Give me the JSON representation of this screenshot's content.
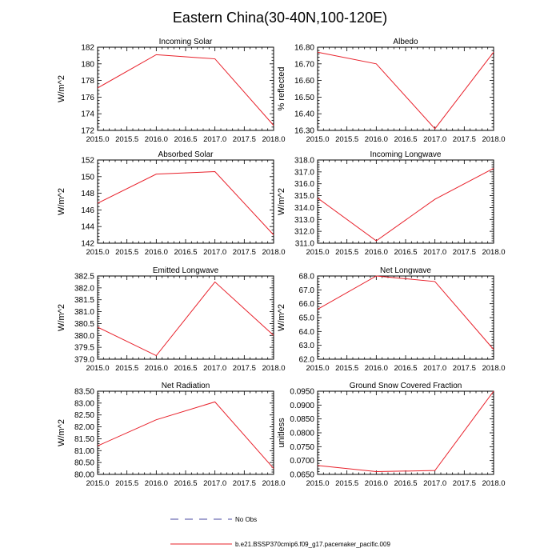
{
  "figure": {
    "title": "Eastern China(30-40N,100-120E)"
  },
  "legend": {
    "entries": [
      {
        "label": "No Obs",
        "style": "dashed",
        "color": "#4a4aa0"
      },
      {
        "label": "b.e21.BSSP370cmip6.f09_g17.pacemaker_pacific.009",
        "style": "solid",
        "color": "#e8202a"
      }
    ]
  },
  "chart_data": [
    {
      "type": "line",
      "title": "Incoming Solar",
      "ylabel": "W/m^2",
      "xlabel": "",
      "x": [
        2015,
        2016,
        2017,
        2018
      ],
      "xlim": [
        2015,
        2018
      ],
      "ylim": [
        172,
        182
      ],
      "xticks": [
        "2015.0",
        "2015.5",
        "2016.0",
        "2016.5",
        "2017.0",
        "2017.5",
        "2018.0"
      ],
      "yticks": [
        "172",
        "174",
        "176",
        "178",
        "180",
        "182"
      ],
      "series": [
        {
          "name": "b.e21.BSSP370cmip6.f09_g17.pacemaker_pacific.009",
          "values": [
            177.1,
            181.1,
            180.6,
            172.6
          ]
        }
      ]
    },
    {
      "type": "line",
      "title": "Albedo",
      "ylabel": "% reflected",
      "xlabel": "",
      "x": [
        2015,
        2016,
        2017,
        2018
      ],
      "xlim": [
        2015,
        2018
      ],
      "ylim": [
        16.3,
        16.8
      ],
      "xticks": [
        "2015.0",
        "2015.5",
        "2016.0",
        "2016.5",
        "2017.0",
        "2017.5",
        "2018.0"
      ],
      "yticks": [
        "16.30",
        "16.40",
        "16.50",
        "16.60",
        "16.70",
        "16.80"
      ],
      "series": [
        {
          "name": "b.e21.BSSP370cmip6.f09_g17.pacemaker_pacific.009",
          "values": [
            16.77,
            16.7,
            16.31,
            16.77
          ]
        }
      ]
    },
    {
      "type": "line",
      "title": "Absorbed Solar",
      "ylabel": "W/m^2",
      "xlabel": "",
      "x": [
        2015,
        2016,
        2017,
        2018
      ],
      "xlim": [
        2015,
        2018
      ],
      "ylim": [
        142,
        152
      ],
      "xticks": [
        "2015.0",
        "2015.5",
        "2016.0",
        "2016.5",
        "2017.0",
        "2017.5",
        "2018.0"
      ],
      "yticks": [
        "142",
        "144",
        "146",
        "148",
        "150",
        "152"
      ],
      "series": [
        {
          "name": "b.e21.BSSP370cmip6.f09_g17.pacemaker_pacific.009",
          "values": [
            146.8,
            150.3,
            150.6,
            143.0
          ]
        }
      ]
    },
    {
      "type": "line",
      "title": "Incoming Longwave",
      "ylabel": "W/m^2",
      "xlabel": "",
      "x": [
        2015,
        2016,
        2017,
        2018
      ],
      "xlim": [
        2015,
        2018
      ],
      "ylim": [
        311,
        318
      ],
      "xticks": [
        "2015.0",
        "2015.5",
        "2016.0",
        "2016.5",
        "2017.0",
        "2017.5",
        "2018.0"
      ],
      "yticks": [
        "311.0",
        "312.0",
        "313.0",
        "314.0",
        "315.0",
        "316.0",
        "317.0",
        "318.0"
      ],
      "series": [
        {
          "name": "b.e21.BSSP370cmip6.f09_g17.pacemaker_pacific.009",
          "values": [
            314.8,
            311.2,
            314.7,
            317.3
          ]
        }
      ]
    },
    {
      "type": "line",
      "title": "Emitted Longwave",
      "ylabel": "W/m^2",
      "xlabel": "",
      "x": [
        2015,
        2016,
        2017,
        2018
      ],
      "xlim": [
        2015,
        2018
      ],
      "ylim": [
        379.0,
        382.5
      ],
      "xticks": [
        "2015.0",
        "2015.5",
        "2016.0",
        "2016.5",
        "2017.0",
        "2017.5",
        "2018.0"
      ],
      "yticks": [
        "379.0",
        "379.5",
        "380.0",
        "380.5",
        "381.0",
        "381.5",
        "382.0",
        "382.5"
      ],
      "series": [
        {
          "name": "b.e21.BSSP370cmip6.f09_g17.pacemaker_pacific.009",
          "values": [
            380.35,
            379.15,
            382.25,
            380.0
          ]
        }
      ]
    },
    {
      "type": "line",
      "title": "Net Longwave",
      "ylabel": "W/m^2",
      "xlabel": "",
      "x": [
        2015,
        2016,
        2017,
        2018
      ],
      "xlim": [
        2015,
        2018
      ],
      "ylim": [
        62.0,
        68.0
      ],
      "xticks": [
        "2015.0",
        "2015.5",
        "2016.0",
        "2016.5",
        "2017.0",
        "2017.5",
        "2018.0"
      ],
      "yticks": [
        "62.0",
        "63.0",
        "64.0",
        "65.0",
        "66.0",
        "67.0",
        "68.0"
      ],
      "series": [
        {
          "name": "b.e21.BSSP370cmip6.f09_g17.pacemaker_pacific.009",
          "values": [
            65.6,
            68.0,
            67.6,
            62.7
          ]
        }
      ]
    },
    {
      "type": "line",
      "title": "Net Radiation",
      "ylabel": "W/m^2",
      "xlabel": "",
      "x": [
        2015,
        2016,
        2017,
        2018
      ],
      "xlim": [
        2015,
        2018
      ],
      "ylim": [
        80.0,
        83.5
      ],
      "xticks": [
        "2015.0",
        "2015.5",
        "2016.0",
        "2016.5",
        "2017.0",
        "2017.5",
        "2018.0"
      ],
      "yticks": [
        "80.00",
        "80.50",
        "81.00",
        "81.50",
        "82.00",
        "82.50",
        "83.00",
        "83.50"
      ],
      "series": [
        {
          "name": "b.e21.BSSP370cmip6.f09_g17.pacemaker_pacific.009",
          "values": [
            81.2,
            82.3,
            83.05,
            80.25
          ]
        }
      ]
    },
    {
      "type": "line",
      "title": "Ground Snow Covered Fraction",
      "ylabel": "unitless",
      "xlabel": "",
      "x": [
        2015,
        2016,
        2017,
        2018
      ],
      "xlim": [
        2015,
        2018
      ],
      "ylim": [
        0.065,
        0.095
      ],
      "xticks": [
        "2015.0",
        "2015.5",
        "2016.0",
        "2016.5",
        "2017.0",
        "2017.5",
        "2018.0"
      ],
      "yticks": [
        "0.0650",
        "0.0700",
        "0.0750",
        "0.0800",
        "0.0850",
        "0.0900",
        "0.0950"
      ],
      "series": [
        {
          "name": "b.e21.BSSP370cmip6.f09_g17.pacemaker_pacific.009",
          "values": [
            0.0682,
            0.066,
            0.0664,
            0.095
          ]
        }
      ]
    }
  ]
}
